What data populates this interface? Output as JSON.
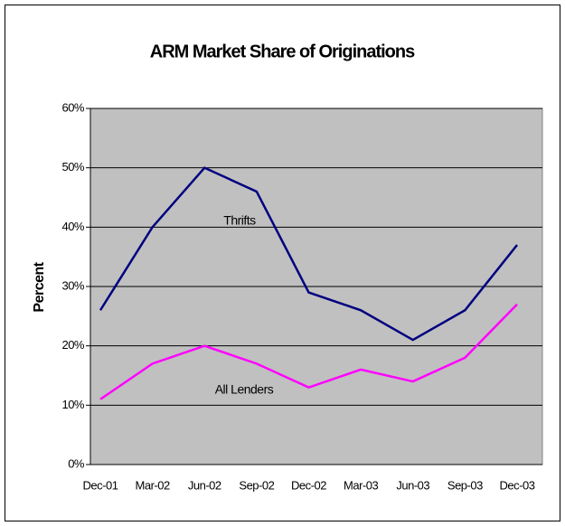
{
  "chart_data": {
    "type": "line",
    "title": "ARM Market Share of Originations",
    "y_label": "Percent",
    "categories": [
      "Dec-01",
      "Mar-02",
      "Jun-02",
      "Sep-02",
      "Dec-02",
      "Mar-03",
      "Jun-03",
      "Sep-03",
      "Dec-03"
    ],
    "series": [
      {
        "name": "Thrifts",
        "color": "#000080",
        "values": [
          26,
          40,
          50,
          46,
          29,
          26,
          21,
          26,
          37
        ]
      },
      {
        "name": "All Lenders",
        "color": "#ff00ff",
        "values": [
          11,
          17,
          20,
          17,
          13,
          16,
          14,
          18,
          27
        ]
      }
    ],
    "ylim": [
      0,
      60
    ],
    "yticks": [
      {
        "value": 0,
        "label": "0%"
      },
      {
        "value": 10,
        "label": "10%"
      },
      {
        "value": 20,
        "label": "20%"
      },
      {
        "value": 30,
        "label": "30%"
      },
      {
        "value": 40,
        "label": "40%"
      },
      {
        "value": 50,
        "label": "50%"
      },
      {
        "value": 60,
        "label": "60%"
      }
    ],
    "grid": true
  }
}
